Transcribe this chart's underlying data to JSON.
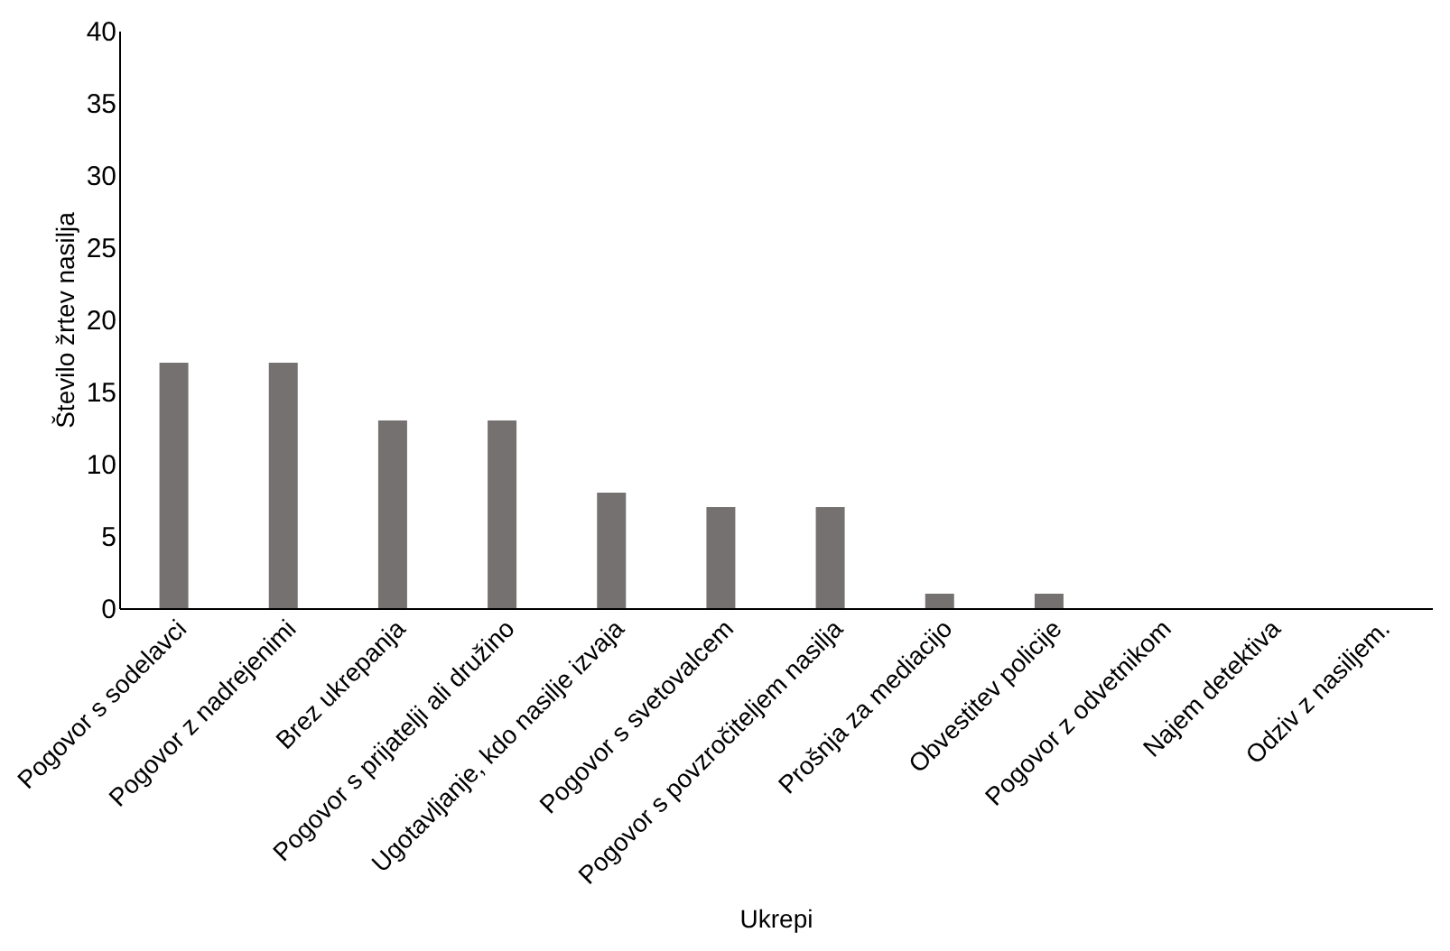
{
  "chart_data": {
    "type": "bar",
    "xlabel": "Ukrepi",
    "ylabel": "Število žrtev nasilja",
    "categories": [
      "Pogovor s sodelavci",
      "Pogovor z nadrejenimi",
      "Brez ukrepanja",
      "Pogovor s prijatelji ali družino",
      "Ugotavljanje, kdo nasilje izvaja",
      "Pogovor s svetovalcem",
      "Pogovor s povzročiteljem nasilja",
      "Prošnja za mediacijo",
      "Obvestitev policije",
      "Pogovor z odvetnikom",
      "Najem detektiva",
      "Odziv z nasiljem."
    ],
    "values": [
      17,
      17,
      13,
      13,
      8,
      7,
      7,
      1,
      1,
      0,
      0,
      0
    ],
    "color": "#767171",
    "ylim": [
      0,
      40
    ],
    "yticks": [
      0,
      5,
      10,
      15,
      20,
      25,
      30,
      35,
      40
    ],
    "grid": false
  }
}
